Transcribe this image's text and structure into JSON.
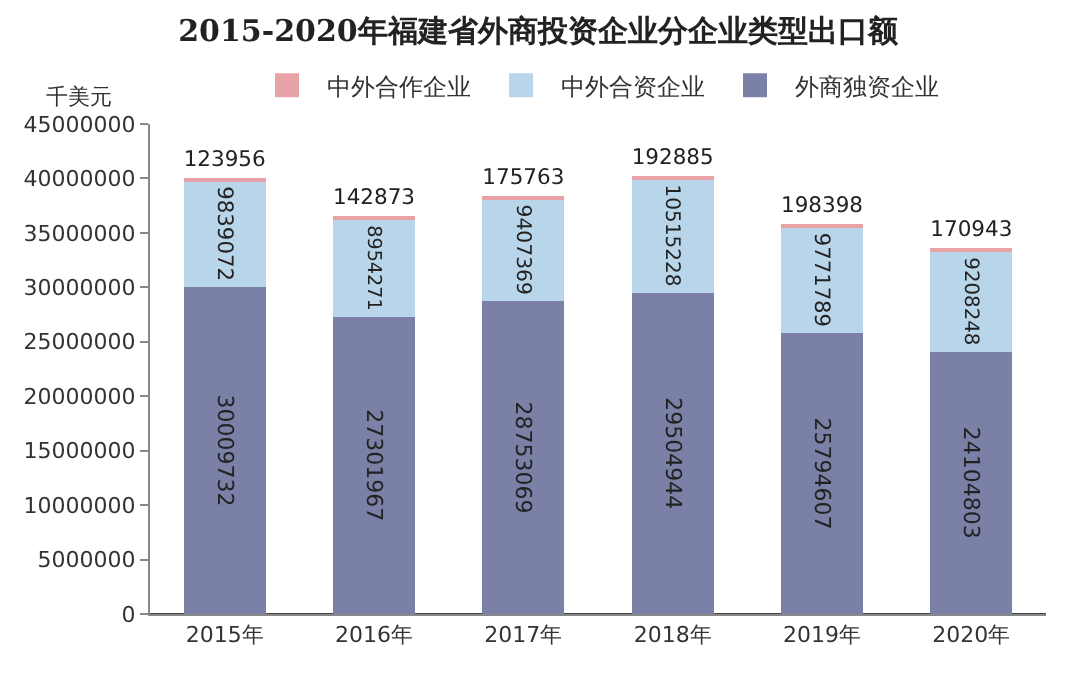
{
  "chart_data": {
    "type": "bar",
    "title": "2015-2020年福建省外商投资企业分企业类型出口额",
    "ylabel": "千美元",
    "categories": [
      "2015年",
      "2016年",
      "2017年",
      "2018年",
      "2019年",
      "2020年"
    ],
    "stacked": true,
    "data_labels": true,
    "legend": "top",
    "grid": false,
    "ylim": [
      0,
      45000000
    ],
    "yticks": [
      0,
      5000000,
      10000000,
      15000000,
      20000000,
      25000000,
      30000000,
      35000000,
      40000000,
      45000000
    ],
    "series": [
      {
        "name": "外商独资企业",
        "color": "#7a80a6",
        "values": [
          30009732,
          27301967,
          28753069,
          29504944,
          25794607,
          24104803
        ]
      },
      {
        "name": "中外合资企业",
        "color": "#b8d5ea",
        "values": [
          9839072,
          8954271,
          9407369,
          10515228,
          9771789,
          9208248
        ]
      },
      {
        "name": "中外合作企业",
        "color": "#e8a3a8",
        "values": [
          123956,
          142873,
          175763,
          192885,
          198398,
          170943
        ]
      }
    ]
  }
}
